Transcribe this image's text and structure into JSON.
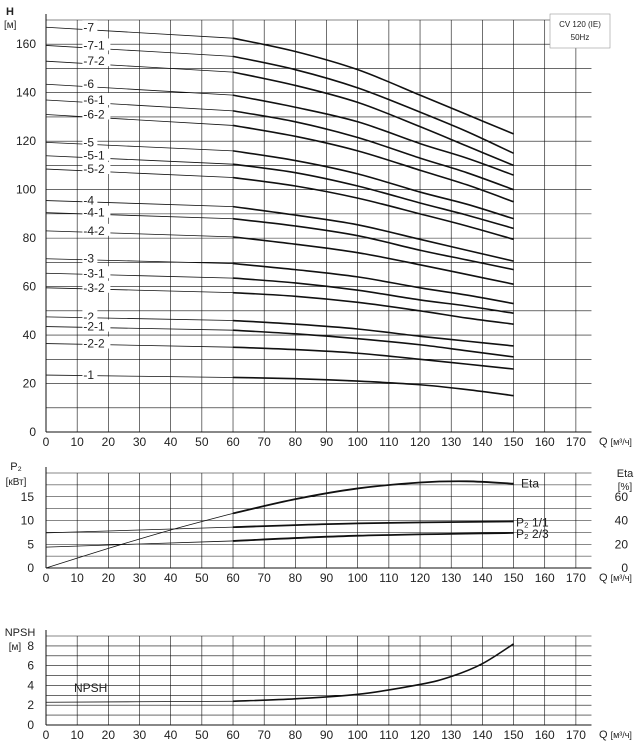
{
  "badge": {
    "line1": "CV 120 (IE)",
    "line2": "50Hz"
  },
  "chart_data": [
    {
      "type": "line",
      "panel": "head",
      "ylabel_symbol": "H",
      "ylabel_unit": "[м]",
      "xlabel_symbol": "Q",
      "xlabel_unit": "[м³/ч]",
      "xlim": [
        0,
        175
      ],
      "ylim": [
        0,
        170
      ],
      "grid": true,
      "xticks": [
        "0",
        "10",
        "20",
        "30",
        "40",
        "50",
        "60",
        "70",
        "80",
        "90",
        "100",
        "110",
        "120",
        "130",
        "140",
        "150",
        "160",
        "170"
      ],
      "yticks": [
        "0",
        "20",
        "40",
        "60",
        "80",
        "100",
        "120",
        "140",
        "160"
      ],
      "x": [
        0,
        60,
        80,
        100,
        120,
        135,
        150
      ],
      "series": [
        {
          "name": "-7",
          "values": [
            167,
            162.5,
            157,
            149.5,
            139,
            131,
            123
          ]
        },
        {
          "name": "-7-1",
          "values": [
            159.5,
            155,
            149.5,
            142,
            132,
            124,
            115
          ]
        },
        {
          "name": "-7-2",
          "values": [
            153,
            148.5,
            143,
            136,
            126,
            118,
            110
          ]
        },
        {
          "name": "-6",
          "values": [
            143.5,
            139,
            134,
            128,
            119,
            113,
            106
          ]
        },
        {
          "name": "-6-1",
          "values": [
            137,
            132.5,
            128,
            121.5,
            113,
            107,
            100
          ]
        },
        {
          "name": "-6-2",
          "values": [
            131,
            126.5,
            122,
            116,
            108,
            102,
            95
          ]
        },
        {
          "name": "-5",
          "values": [
            119.5,
            116,
            112,
            106.5,
            99,
            94,
            88
          ]
        },
        {
          "name": "-5-1",
          "values": [
            114,
            110.5,
            107,
            101.5,
            94.5,
            89.5,
            84
          ]
        },
        {
          "name": "-5-2",
          "values": [
            108.5,
            105,
            101.5,
            96.5,
            90,
            85,
            79.5
          ]
        },
        {
          "name": "-4",
          "values": [
            95.5,
            93,
            89.5,
            85.5,
            79.5,
            75,
            70.5
          ]
        },
        {
          "name": "-4-1",
          "values": [
            90.5,
            88,
            85,
            81,
            75,
            71,
            67
          ]
        },
        {
          "name": "-4-2",
          "values": [
            83,
            80.5,
            77.5,
            74,
            69,
            65,
            61
          ]
        },
        {
          "name": "-3",
          "values": [
            71.5,
            69.5,
            67,
            64,
            59.5,
            56.5,
            53
          ]
        },
        {
          "name": "-3-1",
          "values": [
            65.5,
            63.5,
            61.5,
            58.5,
            54.5,
            52,
            49
          ]
        },
        {
          "name": "-3-2",
          "values": [
            59.5,
            57.5,
            56,
            53.5,
            50,
            47,
            44.5
          ]
        },
        {
          "name": "-2",
          "values": [
            47.5,
            46,
            44.5,
            42.5,
            39.5,
            37.5,
            35.5
          ]
        },
        {
          "name": "-2-1",
          "values": [
            43.5,
            42,
            40.5,
            38.5,
            36,
            33.5,
            31
          ]
        },
        {
          "name": "-2-2",
          "values": [
            36.5,
            35,
            34,
            32.5,
            30,
            28,
            26
          ]
        },
        {
          "name": "-1",
          "values": [
            23.5,
            22.5,
            22,
            21,
            19.5,
            17.5,
            15
          ]
        }
      ]
    },
    {
      "type": "line",
      "panel": "power",
      "ylabel_symbol": "P₂",
      "ylabel_unit": "[кВт]",
      "y2label_symbol": "Eta",
      "y2label_unit": "[%]",
      "xlabel_symbol": "Q",
      "xlabel_unit": "[м³/ч]",
      "xlim": [
        0,
        175
      ],
      "ylim": [
        0,
        20
      ],
      "y2lim": [
        0,
        80
      ],
      "grid": true,
      "xticks": [
        "0",
        "10",
        "20",
        "30",
        "40",
        "50",
        "60",
        "70",
        "80",
        "90",
        "100",
        "110",
        "120",
        "130",
        "140",
        "150",
        "160",
        "170"
      ],
      "yticks": [
        "0",
        "5",
        "10",
        "15"
      ],
      "y2ticks": [
        "0",
        "20",
        "40",
        "60"
      ],
      "series": [
        {
          "name": "Eta",
          "axis": "right",
          "x": [
            0,
            20,
            40,
            60,
            80,
            100,
            120,
            135,
            150
          ],
          "values": [
            0,
            16.5,
            32,
            46,
            58,
            67,
            72,
            73,
            71
          ]
        },
        {
          "name": "P₂ 1/1",
          "axis": "left",
          "x": [
            0,
            60,
            100,
            150
          ],
          "values": [
            7.4,
            8.6,
            9.4,
            9.8
          ]
        },
        {
          "name": "P₂ 2/3",
          "axis": "left",
          "x": [
            0,
            60,
            100,
            150
          ],
          "values": [
            4.4,
            5.7,
            6.8,
            7.4
          ]
        }
      ]
    },
    {
      "type": "line",
      "panel": "npsh",
      "ylabel_symbol": "NPSH",
      "ylabel_unit": "[м]",
      "xlabel_symbol": "Q",
      "xlabel_unit": "[м³/ч]",
      "xlim": [
        0,
        175
      ],
      "ylim": [
        0,
        9
      ],
      "grid": true,
      "xticks": [
        "0",
        "10",
        "20",
        "30",
        "40",
        "50",
        "60",
        "70",
        "80",
        "90",
        "100",
        "110",
        "120",
        "130",
        "140",
        "150",
        "160",
        "170"
      ],
      "yticks": [
        "0",
        "2",
        "4",
        "6",
        "8"
      ],
      "series": [
        {
          "name": "NPSH",
          "x": [
            0,
            60,
            80,
            100,
            120,
            130,
            140,
            150
          ],
          "values": [
            2.3,
            2.4,
            2.65,
            3.1,
            4.1,
            4.9,
            6.2,
            8.2
          ]
        }
      ]
    }
  ]
}
